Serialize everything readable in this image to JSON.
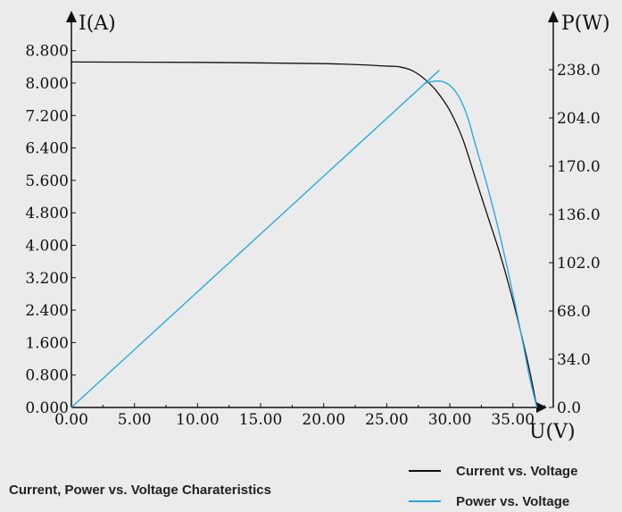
{
  "chart_data": {
    "type": "line",
    "xlabel": "U(V)",
    "ylabel_left": "I(A)",
    "ylabel_right": "P(W)",
    "xlim": [
      0,
      38.2
    ],
    "ylim_left": [
      0,
      9.52
    ],
    "ylim_right": [
      0,
      272
    ],
    "x_ticks": [
      "0.00",
      "5.00",
      "10.00",
      "15.00",
      "20.00",
      "25.00",
      "30.00",
      "35.00"
    ],
    "x_tick_values": [
      0,
      5,
      10,
      15,
      20,
      25,
      30,
      35
    ],
    "y_left_ticks": [
      "0.000",
      "0.800",
      "1.600",
      "2.400",
      "3.200",
      "4.000",
      "4.800",
      "5.600",
      "6.400",
      "7.200",
      "8.000",
      "8.800"
    ],
    "y_left_tick_values": [
      0,
      0.8,
      1.6,
      2.4,
      3.2,
      4.0,
      4.8,
      5.6,
      6.4,
      7.2,
      8.0,
      8.8
    ],
    "y_right_ticks": [
      "0.0",
      "34.0",
      "68.0",
      "102.0",
      "136.0",
      "170.0",
      "204.0",
      "238.0"
    ],
    "y_right_tick_values": [
      0,
      34,
      68,
      102,
      136,
      170,
      204,
      238
    ],
    "caption": "Current, Power vs. Voltage Charateristics",
    "legend_position": "bottom-right",
    "series": [
      {
        "name": "Current vs. Voltage",
        "axis": "left",
        "color": "#111111",
        "x": [
          0,
          10,
          20,
          25,
          26,
          27,
          28,
          29,
          30,
          31,
          32,
          33,
          34,
          35,
          36,
          36.5,
          36.9
        ],
        "y": [
          8.52,
          8.51,
          8.48,
          8.42,
          8.4,
          8.31,
          8.1,
          7.78,
          7.32,
          6.64,
          5.68,
          4.72,
          3.76,
          2.64,
          1.36,
          0.64,
          0.0
        ]
      },
      {
        "name": "Power vs. Voltage",
        "axis": "right",
        "color": "#1da8e0",
        "x": [
          0,
          27,
          27.5,
          28,
          28.5,
          29,
          29.5,
          30,
          30.5,
          31,
          31.5,
          32,
          33,
          34,
          35,
          35.8,
          36.3,
          36.9
        ],
        "y": [
          0,
          220,
          224,
          228,
          229.5,
          230,
          229.5,
          227,
          222,
          214,
          202,
          186,
          155,
          120,
          80,
          45,
          22,
          0
        ]
      }
    ]
  }
}
